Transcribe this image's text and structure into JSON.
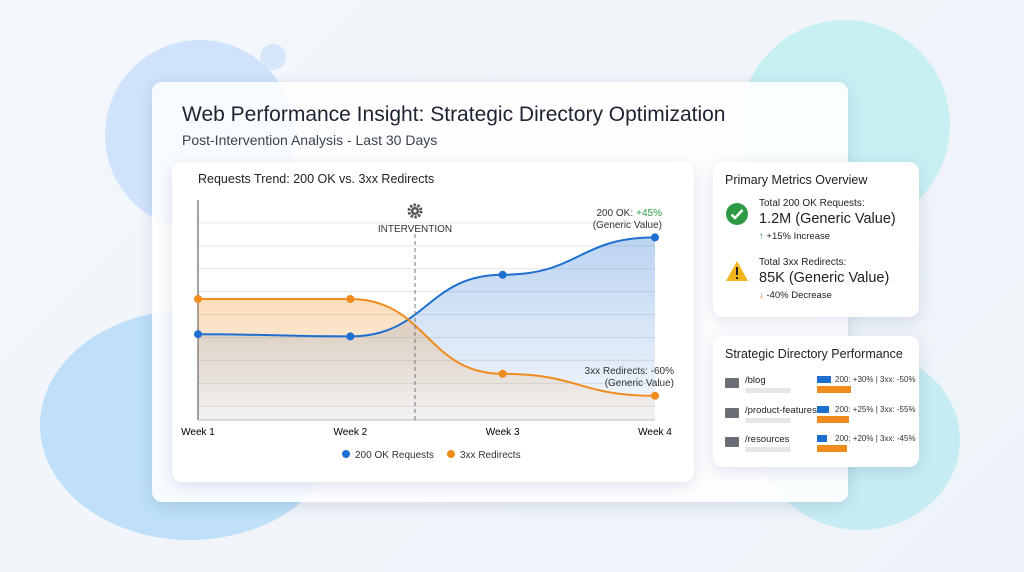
{
  "header": {
    "title": "Web Performance Insight: Strategic Directory Optimization",
    "subtitle": "Post-Intervention Analysis - Last 30 Days"
  },
  "chart_data": {
    "type": "line",
    "title": "Requests Trend: 200 OK vs. 3xx Redirects",
    "categories": [
      "Week 1",
      "Week 2",
      "Week 3",
      "Week 4"
    ],
    "series": [
      {
        "name": "200 OK Requests",
        "color": "#1f6fd1",
        "values": [
          39,
          38,
          66,
          83
        ]
      },
      {
        "name": "3xx Redirects",
        "color": "#f08c1e",
        "values": [
          55,
          55,
          21,
          11
        ]
      }
    ],
    "ylim": [
      0,
      100
    ],
    "grid": true,
    "legend": "bottom",
    "annotations": {
      "intervention": "INTERVENTION",
      "ok_label": "200 OK:",
      "ok_change": "+45%",
      "ok_note": "(Generic Value)",
      "redirect_label": "3xx Redirects: -60%",
      "redirect_note": "(Generic Value)"
    }
  },
  "metrics": {
    "title": "Primary Metrics Overview",
    "items": [
      {
        "label": "Total 200 OK Requests:",
        "value": "1.2M (Generic Value)",
        "change": "+15% Increase"
      },
      {
        "label": "Total 3xx Redirects:",
        "value": "85K (Generic Value)",
        "change": "-40% Decrease"
      }
    ]
  },
  "directories": {
    "title": "Strategic Directory Performance",
    "rows": [
      {
        "name": "/blog",
        "stats": "200: +30% | 3xx: -50%"
      },
      {
        "name": "/product-features",
        "stats": "200: +25% | 3xx: -55%"
      },
      {
        "name": "/resources",
        "stats": "200: +20% | 3xx: -45%"
      }
    ]
  }
}
